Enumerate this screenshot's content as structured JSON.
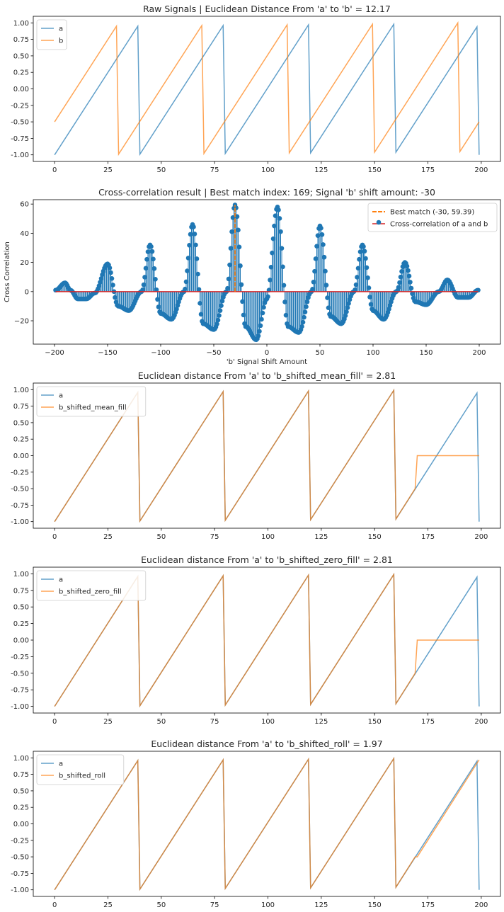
{
  "colors": {
    "a": "#1f77b4",
    "b": "#ff7f0e",
    "stem": "#1f77b4",
    "baseline": "#d62728",
    "bestmatch": "#ff7f0e"
  },
  "chart_data": [
    {
      "type": "line",
      "title": "Raw Signals | Euclidean Distance From 'a' to 'b' = 12.17",
      "xlabel": "",
      "ylabel": "",
      "xlim": [
        -10,
        209
      ],
      "ylim": [
        -1.1,
        1.1
      ],
      "xticks": [
        0,
        25,
        50,
        75,
        100,
        125,
        150,
        175,
        200
      ],
      "xtick_labels": [
        "0",
        "25",
        "50",
        "75",
        "100",
        "125",
        "150",
        "175",
        "200"
      ],
      "yticks": [
        -1.0,
        -0.75,
        -0.5,
        -0.25,
        0.0,
        0.25,
        0.5,
        0.75,
        1.0
      ],
      "ytick_labels": [
        "-1.00",
        "-0.75",
        "-0.50",
        "-0.25",
        "0.00",
        "0.25",
        "0.50",
        "0.75",
        "1.00"
      ],
      "legend": "upper-left",
      "series": [
        {
          "name": "a",
          "color_key": "a",
          "x": [
            0,
            39,
            40,
            79,
            80,
            119,
            120,
            159,
            160,
            198,
            199
          ],
          "y": [
            -1.0,
            0.95,
            -0.99,
            0.96,
            -0.98,
            0.97,
            -0.97,
            0.98,
            -0.96,
            0.94,
            -1.0
          ]
        },
        {
          "name": "b",
          "color_key": "b",
          "x": [
            0,
            29,
            30,
            69,
            70,
            109,
            110,
            149,
            150,
            189,
            190,
            199
          ],
          "y": [
            -0.5,
            0.95,
            -0.99,
            0.96,
            -0.98,
            0.97,
            -0.97,
            0.98,
            -0.96,
            1.0,
            -0.95,
            -0.5
          ]
        }
      ]
    },
    {
      "type": "stem",
      "title": "Cross-correlation result | Best match index: 169; Signal 'b' shift amount: -30",
      "xlabel": "'b' Signal Shift Amount",
      "ylabel": "Cross Correlation",
      "xlim": [
        -220,
        220
      ],
      "ylim": [
        -36,
        63
      ],
      "xticks": [
        -200,
        -150,
        -100,
        -50,
        0,
        50,
        100,
        150,
        200
      ],
      "xtick_labels": [
        "−200",
        "−150",
        "−100",
        "−50",
        "0",
        "50",
        "100",
        "150",
        "200"
      ],
      "yticks": [
        -20,
        0,
        20,
        40,
        60
      ],
      "ytick_labels": [
        "−20",
        "0",
        "20",
        "40",
        "60"
      ],
      "legend": "upper-right",
      "best_match": {
        "x": -30,
        "y": 59.39,
        "label": "Best match (-30, 59.39)"
      },
      "stem_label": "Cross-correlation of a and b",
      "x_range": [
        -199,
        199
      ],
      "envelope_knots": [
        [
          -199,
          1
        ],
        [
          -190,
          6
        ],
        [
          -185,
          1
        ],
        [
          -178,
          -5
        ],
        [
          -170,
          -5
        ],
        [
          -162,
          -1
        ],
        [
          -150,
          19
        ],
        [
          -140,
          -10
        ],
        [
          -130,
          -13
        ],
        [
          -118,
          0
        ],
        [
          -110,
          32
        ],
        [
          -100,
          -15
        ],
        [
          -90,
          -19
        ],
        [
          -78,
          0
        ],
        [
          -70,
          46
        ],
        [
          -60,
          -22
        ],
        [
          -50,
          -26
        ],
        [
          -38,
          0
        ],
        [
          -30,
          59.39
        ],
        [
          -20,
          -24
        ],
        [
          -10,
          -33
        ],
        [
          0,
          -5
        ],
        [
          10,
          58
        ],
        [
          20,
          -24
        ],
        [
          30,
          -28
        ],
        [
          42,
          0
        ],
        [
          50,
          45
        ],
        [
          60,
          -17
        ],
        [
          70,
          -22
        ],
        [
          82,
          0
        ],
        [
          90,
          32
        ],
        [
          100,
          -13
        ],
        [
          110,
          -19
        ],
        [
          122,
          0
        ],
        [
          130,
          20
        ],
        [
          140,
          -7
        ],
        [
          150,
          -9
        ],
        [
          162,
          0
        ],
        [
          170,
          8
        ],
        [
          180,
          -4
        ],
        [
          190,
          -4
        ],
        [
          199,
          1
        ]
      ]
    },
    {
      "type": "line",
      "title": "Euclidean distance From 'a' to 'b_shifted_mean_fill' = 2.81",
      "xlim": [
        -10,
        209
      ],
      "ylim": [
        -1.1,
        1.1
      ],
      "xticks": [
        0,
        25,
        50,
        75,
        100,
        125,
        150,
        175,
        200
      ],
      "xtick_labels": [
        "0",
        "25",
        "50",
        "75",
        "100",
        "125",
        "150",
        "175",
        "200"
      ],
      "yticks": [
        -1.0,
        -0.75,
        -0.5,
        -0.25,
        0.0,
        0.25,
        0.5,
        0.75,
        1.0
      ],
      "ytick_labels": [
        "-1.00",
        "-0.75",
        "-0.50",
        "-0.25",
        "0.00",
        "0.25",
        "0.50",
        "0.75",
        "1.00"
      ],
      "legend": "upper-left",
      "series": [
        {
          "name": "a",
          "color_key": "a",
          "x": [
            0,
            39,
            40,
            79,
            80,
            119,
            120,
            159,
            160,
            198,
            199
          ],
          "y": [
            -1.0,
            0.96,
            -0.99,
            0.97,
            -0.98,
            0.98,
            -0.97,
            0.99,
            -0.96,
            0.95,
            -1.0
          ]
        },
        {
          "name": "b_shifted_mean_fill",
          "color_key": "b",
          "x": [
            0,
            39,
            40,
            79,
            80,
            119,
            120,
            159,
            160,
            169,
            170,
            199
          ],
          "y": [
            -1.0,
            0.96,
            -0.99,
            0.97,
            -0.98,
            0.98,
            -0.97,
            0.99,
            -0.96,
            -0.5,
            0.0,
            0.0
          ]
        }
      ]
    },
    {
      "type": "line",
      "title": "Euclidean distance From 'a' to 'b_shifted_zero_fill' = 2.81",
      "xlim": [
        -10,
        209
      ],
      "ylim": [
        -1.1,
        1.1
      ],
      "xticks": [
        0,
        25,
        50,
        75,
        100,
        125,
        150,
        175,
        200
      ],
      "xtick_labels": [
        "0",
        "25",
        "50",
        "75",
        "100",
        "125",
        "150",
        "175",
        "200"
      ],
      "yticks": [
        -1.0,
        -0.75,
        -0.5,
        -0.25,
        0.0,
        0.25,
        0.5,
        0.75,
        1.0
      ],
      "ytick_labels": [
        "-1.00",
        "-0.75",
        "-0.50",
        "-0.25",
        "0.00",
        "0.25",
        "0.50",
        "0.75",
        "1.00"
      ],
      "legend": "upper-left",
      "series": [
        {
          "name": "a",
          "color_key": "a",
          "x": [
            0,
            39,
            40,
            79,
            80,
            119,
            120,
            159,
            160,
            198,
            199
          ],
          "y": [
            -1.0,
            0.96,
            -0.99,
            0.97,
            -0.98,
            0.98,
            -0.97,
            0.99,
            -0.96,
            0.95,
            -1.0
          ]
        },
        {
          "name": "b_shifted_zero_fill",
          "color_key": "b",
          "x": [
            0,
            39,
            40,
            79,
            80,
            119,
            120,
            159,
            160,
            169,
            170,
            199
          ],
          "y": [
            -1.0,
            0.96,
            -0.99,
            0.97,
            -0.98,
            0.98,
            -0.97,
            0.99,
            -0.96,
            -0.5,
            0.0,
            0.0
          ]
        }
      ]
    },
    {
      "type": "line",
      "title": "Euclidean distance From 'a' to 'b_shifted_roll' = 1.97",
      "xlim": [
        -10,
        209
      ],
      "ylim": [
        -1.1,
        1.1
      ],
      "xticks": [
        0,
        25,
        50,
        75,
        100,
        125,
        150,
        175,
        200
      ],
      "xtick_labels": [
        "0",
        "25",
        "50",
        "75",
        "100",
        "125",
        "150",
        "175",
        "200"
      ],
      "yticks": [
        -1.0,
        -0.75,
        -0.5,
        -0.25,
        0.0,
        0.25,
        0.5,
        0.75,
        1.0
      ],
      "ytick_labels": [
        "-1.00",
        "-0.75",
        "-0.50",
        "-0.25",
        "0.00",
        "0.25",
        "0.50",
        "0.75",
        "1.00"
      ],
      "legend": "upper-left",
      "series": [
        {
          "name": "a",
          "color_key": "a",
          "x": [
            0,
            39,
            40,
            79,
            80,
            119,
            120,
            159,
            160,
            198,
            199
          ],
          "y": [
            -1.0,
            0.96,
            -0.99,
            0.97,
            -0.98,
            0.98,
            -0.97,
            0.99,
            -0.96,
            0.95,
            -1.0
          ]
        },
        {
          "name": "b_shifted_roll",
          "color_key": "b",
          "x": [
            0,
            39,
            40,
            79,
            80,
            119,
            120,
            159,
            160,
            169,
            170,
            199
          ],
          "y": [
            -1.0,
            0.96,
            -0.99,
            0.97,
            -0.98,
            0.98,
            -0.97,
            0.99,
            -0.96,
            -0.5,
            -0.5,
            0.97
          ]
        }
      ]
    }
  ]
}
